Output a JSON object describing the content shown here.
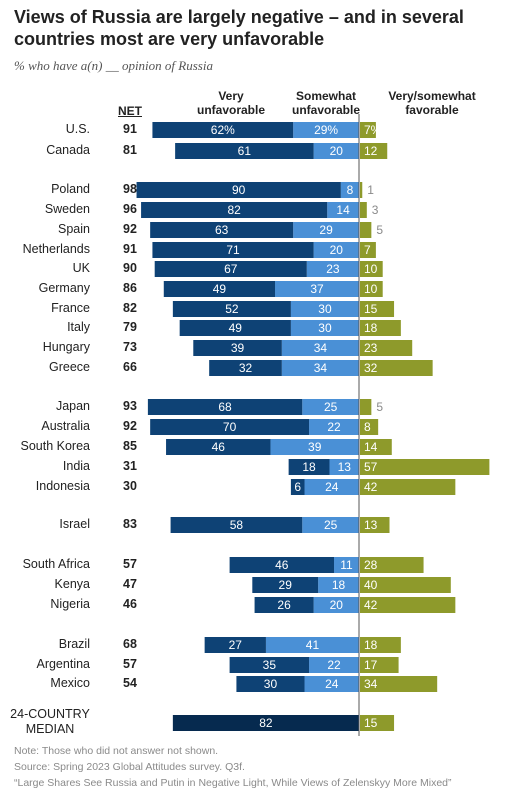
{
  "title": "Views of Russia are largely negative – and in several countries most are very unfavorable",
  "subtitle": "% who have a(n) __ opinion of Russia",
  "headers": {
    "net": "NET",
    "very_unfavorable": "Very unfavorable",
    "somewhat_unfavorable": "Somewhat unfavorable",
    "favorable": "Very/somewhat favorable"
  },
  "footer": {
    "note": "Note: Those who did not answer not shown.",
    "source": "Source: Spring 2023 Global Attitudes survey. Q3f.",
    "report": "“Large Shares See Russia and Putin in Negative Light, While Views of Zelenskyy More Mixed”"
  },
  "colors": {
    "very_unfavorable": "#0e4275",
    "somewhat_unfavorable": "#4a90d6",
    "favorable": "#8e9a2b",
    "median_very": "#062a4f"
  },
  "chart_data": {
    "type": "bar",
    "orientation": "diverging-horizontal",
    "series": [
      {
        "name": "Very unfavorable"
      },
      {
        "name": "Somewhat unfavorable"
      },
      {
        "name": "Very/somewhat favorable"
      }
    ],
    "rows": [
      {
        "country": "U.S.",
        "net": "91",
        "very": 62,
        "somewhat": 29,
        "favorable": 7,
        "pct": true
      },
      {
        "country": "Canada",
        "net": "81",
        "very": 61,
        "somewhat": 20,
        "favorable": 12
      },
      {
        "country": "Poland",
        "net": "98",
        "very": 90,
        "somewhat": 8,
        "favorable": 1
      },
      {
        "country": "Sweden",
        "net": "96",
        "very": 82,
        "somewhat": 14,
        "favorable": 3
      },
      {
        "country": "Spain",
        "net": "92",
        "very": 63,
        "somewhat": 29,
        "favorable": 5
      },
      {
        "country": "Netherlands",
        "net": "91",
        "very": 71,
        "somewhat": 20,
        "favorable": 7
      },
      {
        "country": "UK",
        "net": "90",
        "very": 67,
        "somewhat": 23,
        "favorable": 10
      },
      {
        "country": "Germany",
        "net": "86",
        "very": 49,
        "somewhat": 37,
        "favorable": 10
      },
      {
        "country": "France",
        "net": "82",
        "very": 52,
        "somewhat": 30,
        "favorable": 15
      },
      {
        "country": "Italy",
        "net": "79",
        "very": 49,
        "somewhat": 30,
        "favorable": 18
      },
      {
        "country": "Hungary",
        "net": "73",
        "very": 39,
        "somewhat": 34,
        "favorable": 23
      },
      {
        "country": "Greece",
        "net": "66",
        "very": 32,
        "somewhat": 34,
        "favorable": 32
      },
      {
        "country": "Japan",
        "net": "93",
        "very": 68,
        "somewhat": 25,
        "favorable": 5
      },
      {
        "country": "Australia",
        "net": "92",
        "very": 70,
        "somewhat": 22,
        "favorable": 8
      },
      {
        "country": "South Korea",
        "net": "85",
        "very": 46,
        "somewhat": 39,
        "favorable": 14
      },
      {
        "country": "India",
        "net": "31",
        "very": 18,
        "somewhat": 13,
        "favorable": 57
      },
      {
        "country": "Indonesia",
        "net": "30",
        "very": 6,
        "somewhat": 24,
        "favorable": 42
      },
      {
        "country": "Israel",
        "net": "83",
        "very": 58,
        "somewhat": 25,
        "favorable": 13
      },
      {
        "country": "South Africa",
        "net": "57",
        "very": 46,
        "somewhat": 11,
        "favorable": 28
      },
      {
        "country": "Kenya",
        "net": "47",
        "very": 29,
        "somewhat": 18,
        "favorable": 40
      },
      {
        "country": "Nigeria",
        "net": "46",
        "very": 26,
        "somewhat": 20,
        "favorable": 42
      },
      {
        "country": "Brazil",
        "net": "68",
        "very": 27,
        "somewhat": 41,
        "favorable": 18
      },
      {
        "country": "Argentina",
        "net": "57",
        "very": 35,
        "somewhat": 22,
        "favorable": 17
      },
      {
        "country": "Mexico",
        "net": "54",
        "very": 30,
        "somewhat": 24,
        "favorable": 34
      },
      {
        "country": "24-COUNTRY MEDIAN",
        "net": "",
        "very": 82,
        "somewhat": null,
        "favorable": 15,
        "median": true
      }
    ]
  }
}
